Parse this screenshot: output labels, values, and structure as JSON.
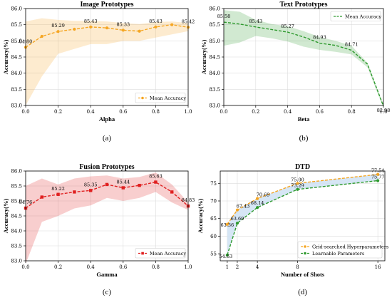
{
  "chart_data": [
    {
      "type": "line",
      "caption": "(a)",
      "title": "Image Prototypes",
      "xlabel": "Alpha",
      "ylabel": "Accuracy(%)",
      "xlim": [
        0,
        1
      ],
      "ylim": [
        83.0,
        86.0
      ],
      "xticks": [
        0.0,
        0.2,
        0.4,
        0.6,
        0.8,
        1.0
      ],
      "xtick_labels": [
        "0.0",
        "0.2",
        "0.4",
        "0.6",
        "0.8",
        "1.0"
      ],
      "yticks": [
        83.0,
        83.5,
        84.0,
        84.5,
        85.0,
        85.5,
        86.0
      ],
      "ytick_labels": [
        "83.0",
        "83.5",
        "84.0",
        "84.5",
        "85.0",
        "85.5",
        "86.0"
      ],
      "grid": true,
      "legend_position": "bottom-right",
      "series": [
        {
          "name": "Mean Accuracy",
          "color": "#f5a623",
          "marker": "circle",
          "line": "dashed",
          "x": [
            0.0,
            0.1,
            0.2,
            0.3,
            0.4,
            0.5,
            0.6,
            0.7,
            0.8,
            0.9,
            1.0
          ],
          "y": [
            84.8,
            85.14,
            85.29,
            85.36,
            85.43,
            85.4,
            85.33,
            85.3,
            85.43,
            85.5,
            85.42
          ],
          "band_lower": [
            83.0,
            83.9,
            84.6,
            84.75,
            84.9,
            84.9,
            85.0,
            85.0,
            85.1,
            85.2,
            85.3
          ],
          "band_upper": [
            85.6,
            85.7,
            85.65,
            85.62,
            85.62,
            85.6,
            85.55,
            85.52,
            85.58,
            85.6,
            85.55
          ],
          "labels": [
            {
              "x": 0.0,
              "y": 84.8,
              "text": "84.80"
            },
            {
              "x": 0.2,
              "y": 85.29,
              "text": "85.29"
            },
            {
              "x": 0.4,
              "y": 85.43,
              "text": "85.43"
            },
            {
              "x": 0.6,
              "y": 85.33,
              "text": "85.33"
            },
            {
              "x": 0.8,
              "y": 85.43,
              "text": "85.43"
            },
            {
              "x": 1.0,
              "y": 85.42,
              "text": "85.42"
            }
          ]
        }
      ]
    },
    {
      "type": "line",
      "caption": "(b)",
      "title": "Text Prototypes",
      "xlabel": "Beta",
      "ylabel": "Accuracy(%)",
      "xlim": [
        0,
        1
      ],
      "ylim": [
        83.0,
        86.0
      ],
      "xticks": [
        0.0,
        0.2,
        0.4,
        0.6,
        0.8,
        1.0
      ],
      "xtick_labels": [
        "0.0",
        "0.2",
        "0.4",
        "0.6",
        "0.8",
        "1.0"
      ],
      "yticks": [
        83.0,
        83.5,
        84.0,
        84.5,
        85.0,
        85.5,
        86.0
      ],
      "ytick_labels": [
        "83.0",
        "83.5",
        "84.0",
        "84.5",
        "85.0",
        "85.5",
        "86.0"
      ],
      "grid": true,
      "legend_position": "top-right",
      "series": [
        {
          "name": "Mean Accuracy",
          "color": "#2e9a2e",
          "marker": "none",
          "line": "dashed",
          "x": [
            0.0,
            0.1,
            0.2,
            0.3,
            0.4,
            0.5,
            0.6,
            0.7,
            0.8,
            0.9,
            1.0
          ],
          "y": [
            85.58,
            85.52,
            85.43,
            85.35,
            85.27,
            85.12,
            84.93,
            84.86,
            84.71,
            84.28,
            82.98
          ],
          "band_lower": [
            84.85,
            84.95,
            85.15,
            85.08,
            84.98,
            84.82,
            84.72,
            84.66,
            84.58,
            84.18,
            82.92
          ],
          "band_upper": [
            85.95,
            85.9,
            85.65,
            85.52,
            85.45,
            85.3,
            85.12,
            85.0,
            84.85,
            84.32,
            83.02
          ],
          "labels": [
            {
              "x": 0.0,
              "y": 85.58,
              "text": "85.58"
            },
            {
              "x": 0.2,
              "y": 85.43,
              "text": "85.43"
            },
            {
              "x": 0.4,
              "y": 85.27,
              "text": "85.27"
            },
            {
              "x": 0.6,
              "y": 84.93,
              "text": "84.93"
            },
            {
              "x": 0.8,
              "y": 84.71,
              "text": "84.71"
            },
            {
              "x": 1.0,
              "y": 82.98,
              "text": "82.98"
            }
          ]
        }
      ]
    },
    {
      "type": "line",
      "caption": "(c)",
      "title": "Fusion Prototypes",
      "xlabel": "Gamma",
      "ylabel": "Accuracy(%)",
      "xlim": [
        0,
        1
      ],
      "ylim": [
        83.0,
        86.0
      ],
      "xticks": [
        0.0,
        0.2,
        0.4,
        0.6,
        0.8,
        1.0
      ],
      "xtick_labels": [
        "0.0",
        "0.2",
        "0.4",
        "0.6",
        "0.8",
        "1.0"
      ],
      "yticks": [
        83.0,
        83.5,
        84.0,
        84.5,
        85.0,
        85.5,
        86.0
      ],
      "ytick_labels": [
        "83.0",
        "83.5",
        "84.0",
        "84.5",
        "85.0",
        "85.5",
        "86.0"
      ],
      "grid": true,
      "legend_position": "bottom-right",
      "series": [
        {
          "name": "Mean Accuracy",
          "color": "#e02020",
          "marker": "square",
          "line": "dashed",
          "x": [
            0.0,
            0.1,
            0.2,
            0.3,
            0.4,
            0.5,
            0.6,
            0.7,
            0.8,
            0.9,
            1.0
          ],
          "y": [
            84.76,
            85.13,
            85.22,
            85.3,
            85.35,
            85.55,
            85.44,
            85.52,
            85.63,
            85.3,
            84.83
          ],
          "band_lower": [
            82.9,
            84.3,
            84.5,
            84.75,
            84.85,
            85.1,
            85.0,
            85.1,
            85.3,
            84.95,
            84.7
          ],
          "band_upper": [
            85.5,
            85.75,
            85.55,
            85.75,
            85.82,
            85.85,
            85.75,
            85.8,
            85.95,
            85.55,
            84.95
          ],
          "labels": [
            {
              "x": 0.0,
              "y": 84.76,
              "text": "84.76"
            },
            {
              "x": 0.2,
              "y": 85.22,
              "text": "85.22"
            },
            {
              "x": 0.4,
              "y": 85.35,
              "text": "85.35"
            },
            {
              "x": 0.6,
              "y": 85.44,
              "text": "85.44"
            },
            {
              "x": 0.8,
              "y": 85.63,
              "text": "85.63"
            },
            {
              "x": 1.0,
              "y": 84.83,
              "text": "84.83"
            }
          ]
        }
      ]
    },
    {
      "type": "line",
      "caption": "(d)",
      "title": "DTD",
      "xlabel": "Number of Shots",
      "ylabel": "Accuracy(%)",
      "xlim": [
        0.3,
        16.7
      ],
      "ylim": [
        53.0,
        78.5
      ],
      "xticks": [
        1,
        2,
        4,
        8,
        16
      ],
      "xtick_labels": [
        "1",
        "2",
        "4",
        "8",
        "16"
      ],
      "yticks": [
        55,
        60,
        65,
        70,
        75
      ],
      "ytick_labels": [
        "55",
        "60",
        "65",
        "70",
        "75"
      ],
      "grid": true,
      "legend_position": "bottom-right",
      "band_between_series": true,
      "band_color": "#cfe2f3",
      "series": [
        {
          "name": "Grid-searched Hyperparameters",
          "color": "#f5a623",
          "marker": "circle",
          "line": "dashed",
          "x": [
            1,
            2,
            4,
            8,
            16
          ],
          "y": [
            63.36,
            67.43,
            70.69,
            75.0,
            77.54
          ],
          "labels": [
            {
              "x": 1,
              "y": 63.36,
              "text": "63.36"
            },
            {
              "x": 2,
              "y": 67.43,
              "text": "67.43"
            },
            {
              "x": 4,
              "y": 70.69,
              "text": "70.69"
            },
            {
              "x": 8,
              "y": 75.0,
              "text": "75.00"
            },
            {
              "x": 16,
              "y": 77.54,
              "text": "77.54"
            }
          ]
        },
        {
          "name": "Learnable Parameters",
          "color": "#2e9a2e",
          "marker": "circle",
          "line": "dashed",
          "x": [
            1,
            2,
            4,
            8,
            16
          ],
          "y": [
            54.63,
            63.69,
            68.14,
            73.29,
            75.77
          ],
          "labels": [
            {
              "x": 1,
              "y": 54.63,
              "text": "54.63"
            },
            {
              "x": 2,
              "y": 63.69,
              "text": "63.69"
            },
            {
              "x": 4,
              "y": 68.14,
              "text": "68.14"
            },
            {
              "x": 8,
              "y": 73.29,
              "text": "73.29"
            },
            {
              "x": 16,
              "y": 75.77,
              "text": "75.77"
            }
          ]
        }
      ]
    }
  ]
}
